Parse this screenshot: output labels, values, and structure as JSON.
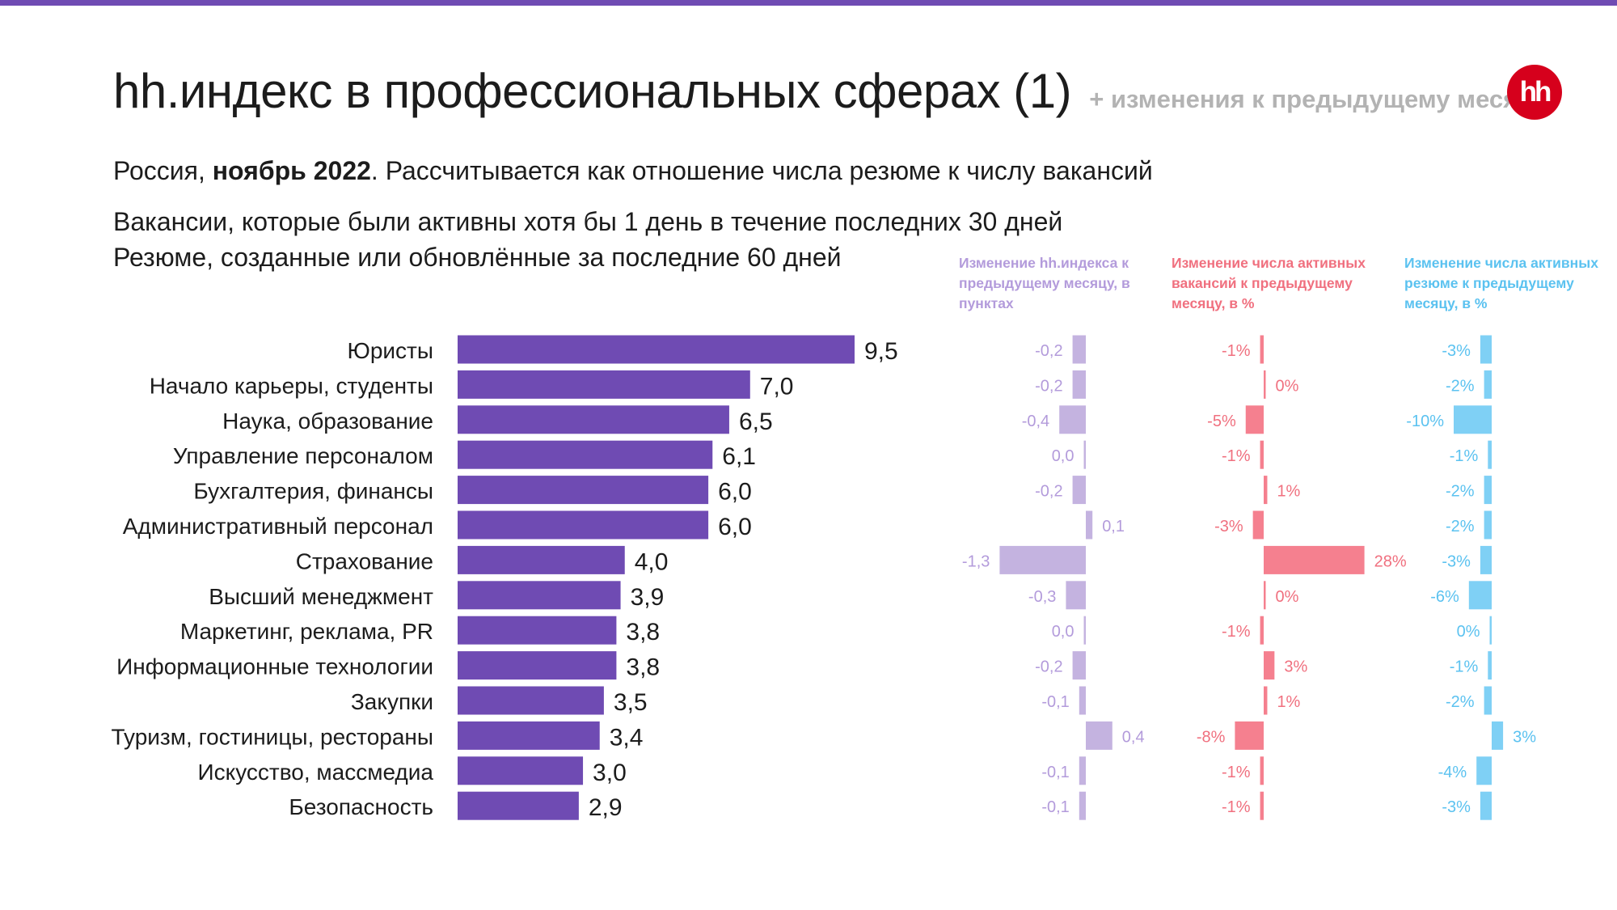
{
  "header": {
    "title": "hh.индекс в профессиональных сферах (1)",
    "title_suffix": "+ изменения к предыдущему месяцу",
    "logo_text": "hh"
  },
  "subtitle": {
    "line1_pre": "Россия, ",
    "line1_bold": "ноябрь 2022",
    "line1_post": ". Рассчитывается как отношение числа резюме к числу вакансий",
    "line2": "Вакансии, которые были активны хотя бы 1 день в течение последних 30 дней",
    "line3": "Резюме, созданные или обновлённые за последние 60 дней"
  },
  "colors": {
    "accent_bar": "#6f4bb3",
    "top_bar": "#6f4bb3",
    "logo_bg": "#d6001c",
    "index_change": "#c4b3e0",
    "index_change_text": "#b39bdb",
    "vacancy_change": "#f5808f",
    "vacancy_change_text": "#f0707f",
    "resume_change": "#7fd0f5",
    "resume_change_text": "#5bc2f0"
  },
  "chart_data": [
    {
      "type": "bar",
      "orientation": "horizontal",
      "categories": [
        "Юристы",
        "Начало карьеры, студенты",
        "Наука, образование",
        "Управление персоналом",
        "Бухгалтерия, финансы",
        "Административный персонал",
        "Страхование",
        "Высший менеджмент",
        "Маркетинг, реклама, PR",
        "Информационные технологии",
        "Закупки",
        "Туризм, гостиницы, рестораны",
        "Искусство, массмедиа",
        "Безопасность"
      ],
      "values": [
        9.5,
        7.0,
        6.5,
        6.1,
        6.0,
        6.0,
        4.0,
        3.9,
        3.8,
        3.8,
        3.5,
        3.4,
        3.0,
        2.9
      ],
      "value_labels": [
        "9,5",
        "7,0",
        "6,5",
        "6,1",
        "6,0",
        "6,0",
        "4,0",
        "3,9",
        "3,8",
        "3,8",
        "3,5",
        "3,4",
        "3,0",
        "2,9"
      ],
      "xlim": [
        0,
        9.5
      ]
    },
    {
      "type": "bar",
      "orientation": "horizontal",
      "title": "Изменение hh.индекса к предыдущему месяцу, в пунктах",
      "categories": [
        "Юристы",
        "Начало карьеры, студенты",
        "Наука, образование",
        "Управление персоналом",
        "Бухгалтерия, финансы",
        "Административный персонал",
        "Страхование",
        "Высший менеджмент",
        "Маркетинг, реклама, PR",
        "Информационные технологии",
        "Закупки",
        "Туризм, гостиницы, рестораны",
        "Искусство, массмедиа",
        "Безопасность"
      ],
      "values": [
        -0.2,
        -0.2,
        -0.4,
        0.0,
        -0.2,
        0.1,
        -1.3,
        -0.3,
        0.0,
        -0.2,
        -0.1,
        0.4,
        -0.1,
        -0.1
      ],
      "value_labels": [
        "-0,2",
        "-0,2",
        "-0,4",
        "0,0",
        "-0,2",
        "0,1",
        "-1,3",
        "-0,3",
        "0,0",
        "-0,2",
        "-0,1",
        "0,4",
        "-0,1",
        "-0,1"
      ],
      "xlim": [
        -1.3,
        0.4
      ]
    },
    {
      "type": "bar",
      "orientation": "horizontal",
      "title": "Изменение числа активных вакансий к предыдущему месяцу, в %",
      "categories": [
        "Юристы",
        "Начало карьеры, студенты",
        "Наука, образование",
        "Управление персоналом",
        "Бухгалтерия, финансы",
        "Административный персонал",
        "Страхование",
        "Высший менеджмент",
        "Маркетинг, реклама, PR",
        "Информационные технологии",
        "Закупки",
        "Туризм, гостиницы, рестораны",
        "Искусство, массмедиа",
        "Безопасность"
      ],
      "values": [
        -1,
        0,
        -5,
        -1,
        1,
        -3,
        28,
        0,
        -1,
        3,
        1,
        -8,
        -1,
        -1
      ],
      "value_labels": [
        "-1%",
        "0%",
        "-5%",
        "-1%",
        "1%",
        "-3%",
        "28%",
        "0%",
        "-1%",
        "3%",
        "1%",
        "-8%",
        "-1%",
        "-1%"
      ],
      "xlim": [
        -8,
        28
      ]
    },
    {
      "type": "bar",
      "orientation": "horizontal",
      "title": "Изменение числа активных резюме к предыдущему месяцу, в %",
      "categories": [
        "Юристы",
        "Начало карьеры, студенты",
        "Наука, образование",
        "Управление персоналом",
        "Бухгалтерия, финансы",
        "Административный персонал",
        "Страхование",
        "Высший менеджмент",
        "Маркетинг, реклама, PR",
        "Информационные технологии",
        "Закупки",
        "Туризм, гостиницы, рестораны",
        "Искусство, массмедиа",
        "Безопасность"
      ],
      "values": [
        -3,
        -2,
        -10,
        -1,
        -2,
        -2,
        -3,
        -6,
        0,
        -1,
        -2,
        3,
        -4,
        -3
      ],
      "value_labels": [
        "-3%",
        "-2%",
        "-10%",
        "-1%",
        "-2%",
        "-2%",
        "-3%",
        "-6%",
        "0%",
        "-1%",
        "-2%",
        "3%",
        "-4%",
        "-3%"
      ],
      "xlim": [
        -10,
        3
      ]
    }
  ]
}
